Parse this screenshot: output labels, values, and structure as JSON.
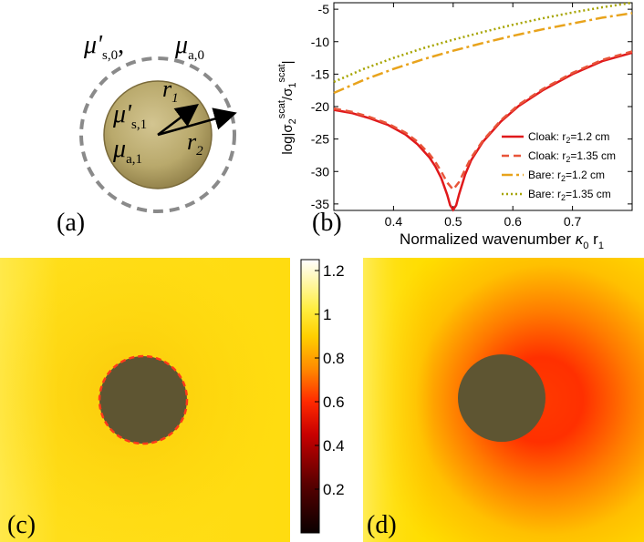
{
  "panel_a": {
    "outer_label_mu": "μ'",
    "outer_label_mu_sub": "s,0",
    "outer_label_mua": "μ",
    "outer_label_mua_sub": "a,0",
    "inner_mus": "μ'",
    "inner_mus_sub": "s,1",
    "inner_mua": "μ",
    "inner_mua_sub": "a,1",
    "r1": "r",
    "r1_sub": "1",
    "r2": "r",
    "r2_sub": "2",
    "tag": "(a)"
  },
  "panel_b_tag": "(b)",
  "panel_c_tag": "(c)",
  "panel_d_tag": "(d)",
  "colorbar": {
    "ticks": [
      "1.2",
      "1",
      "0.8",
      "0.6",
      "0.4",
      "0.2"
    ],
    "tick_values": [
      1.2,
      1.0,
      0.8,
      0.6,
      0.4,
      0.2
    ],
    "range": [
      0,
      1.25
    ]
  },
  "chart_data": {
    "type": "line",
    "xlabel": "Normalized wavenumber κ0 r1",
    "xlabel_main": "Normalized wavenumber ",
    "xlabel_kappa": "κ",
    "xlabel_k_sub": "0",
    "xlabel_r": " r",
    "xlabel_r_sub": "1",
    "ylabel_prefix": "log|σ",
    "ylabel_num_sub": "2",
    "ylabel_num_sup": "scat",
    "ylabel_mid": "/σ",
    "ylabel_den_sub": "1",
    "ylabel_den_sup": "scat",
    "ylabel_suffix": "|",
    "xlim": [
      0.3,
      0.8
    ],
    "ylim": [
      -36,
      -4
    ],
    "xticks": [
      0.4,
      0.5,
      0.6,
      0.7
    ],
    "xtick_labels": [
      "0.4",
      "0.5",
      "0.6",
      "0.7"
    ],
    "yticks": [
      -35,
      -30,
      -25,
      -20,
      -15,
      -10,
      -5
    ],
    "ytick_labels": [
      "-35",
      "-30",
      "-25",
      "-20",
      "-15",
      "-10",
      "-5"
    ],
    "legend_position": "lower-right",
    "series": [
      {
        "name": "Cloak: r2=1.2 cm",
        "label_main": "Cloak: r",
        "label_sub": "2",
        "label_tail": "=1.2 cm",
        "color": "#e0191b",
        "dash": "solid",
        "x": [
          0.3,
          0.33,
          0.36,
          0.39,
          0.42,
          0.44,
          0.46,
          0.47,
          0.48,
          0.49,
          0.495,
          0.5,
          0.505,
          0.51,
          0.52,
          0.53,
          0.55,
          0.58,
          0.61,
          0.65,
          0.7,
          0.75,
          0.8
        ],
        "y": [
          -20.5,
          -21.0,
          -21.8,
          -22.8,
          -24.3,
          -25.8,
          -27.8,
          -29.2,
          -31.0,
          -33.6,
          -35.2,
          -35.9,
          -35.2,
          -33.5,
          -30.5,
          -28.3,
          -25.4,
          -22.3,
          -19.9,
          -17.5,
          -15.0,
          -13.0,
          -11.7
        ]
      },
      {
        "name": "Cloak: r2=1.35 cm",
        "label_main": "Cloak: r",
        "label_sub": "2",
        "label_tail": "=1.35 cm",
        "color": "#e8553a",
        "dash": "8,5",
        "x": [
          0.3,
          0.33,
          0.36,
          0.39,
          0.42,
          0.44,
          0.46,
          0.47,
          0.48,
          0.49,
          0.5,
          0.51,
          0.52,
          0.53,
          0.55,
          0.58,
          0.61,
          0.65,
          0.7,
          0.75,
          0.8
        ],
        "y": [
          -20.3,
          -20.8,
          -21.6,
          -22.6,
          -24.0,
          -25.4,
          -27.3,
          -28.5,
          -30.0,
          -31.7,
          -32.8,
          -31.6,
          -29.7,
          -27.9,
          -25.2,
          -22.1,
          -19.7,
          -17.3,
          -14.8,
          -12.8,
          -11.5
        ]
      },
      {
        "name": "Bare: r2=1.2 cm",
        "label_main": "Bare: r",
        "label_sub": "2",
        "label_tail": "=1.2 cm",
        "color": "#e8a31c",
        "dash": "12,4,3,4",
        "x": [
          0.3,
          0.35,
          0.4,
          0.45,
          0.5,
          0.55,
          0.6,
          0.65,
          0.7,
          0.75,
          0.8
        ],
        "y": [
          -17.9,
          -15.9,
          -14.2,
          -12.7,
          -11.4,
          -10.2,
          -9.1,
          -8.1,
          -7.2,
          -6.3,
          -5.6
        ]
      },
      {
        "name": "Bare: r2=1.35 cm",
        "label_main": "Bare: r",
        "label_sub": "2",
        "label_tail": "=1.35 cm",
        "color": "#a6a400",
        "dash": "2,3",
        "x": [
          0.3,
          0.35,
          0.4,
          0.45,
          0.5,
          0.55,
          0.6,
          0.65,
          0.7,
          0.75,
          0.8
        ],
        "y": [
          -16.2,
          -14.2,
          -12.5,
          -11.0,
          -9.7,
          -8.5,
          -7.4,
          -6.4,
          -5.5,
          -4.7,
          -4.0
        ]
      }
    ]
  }
}
